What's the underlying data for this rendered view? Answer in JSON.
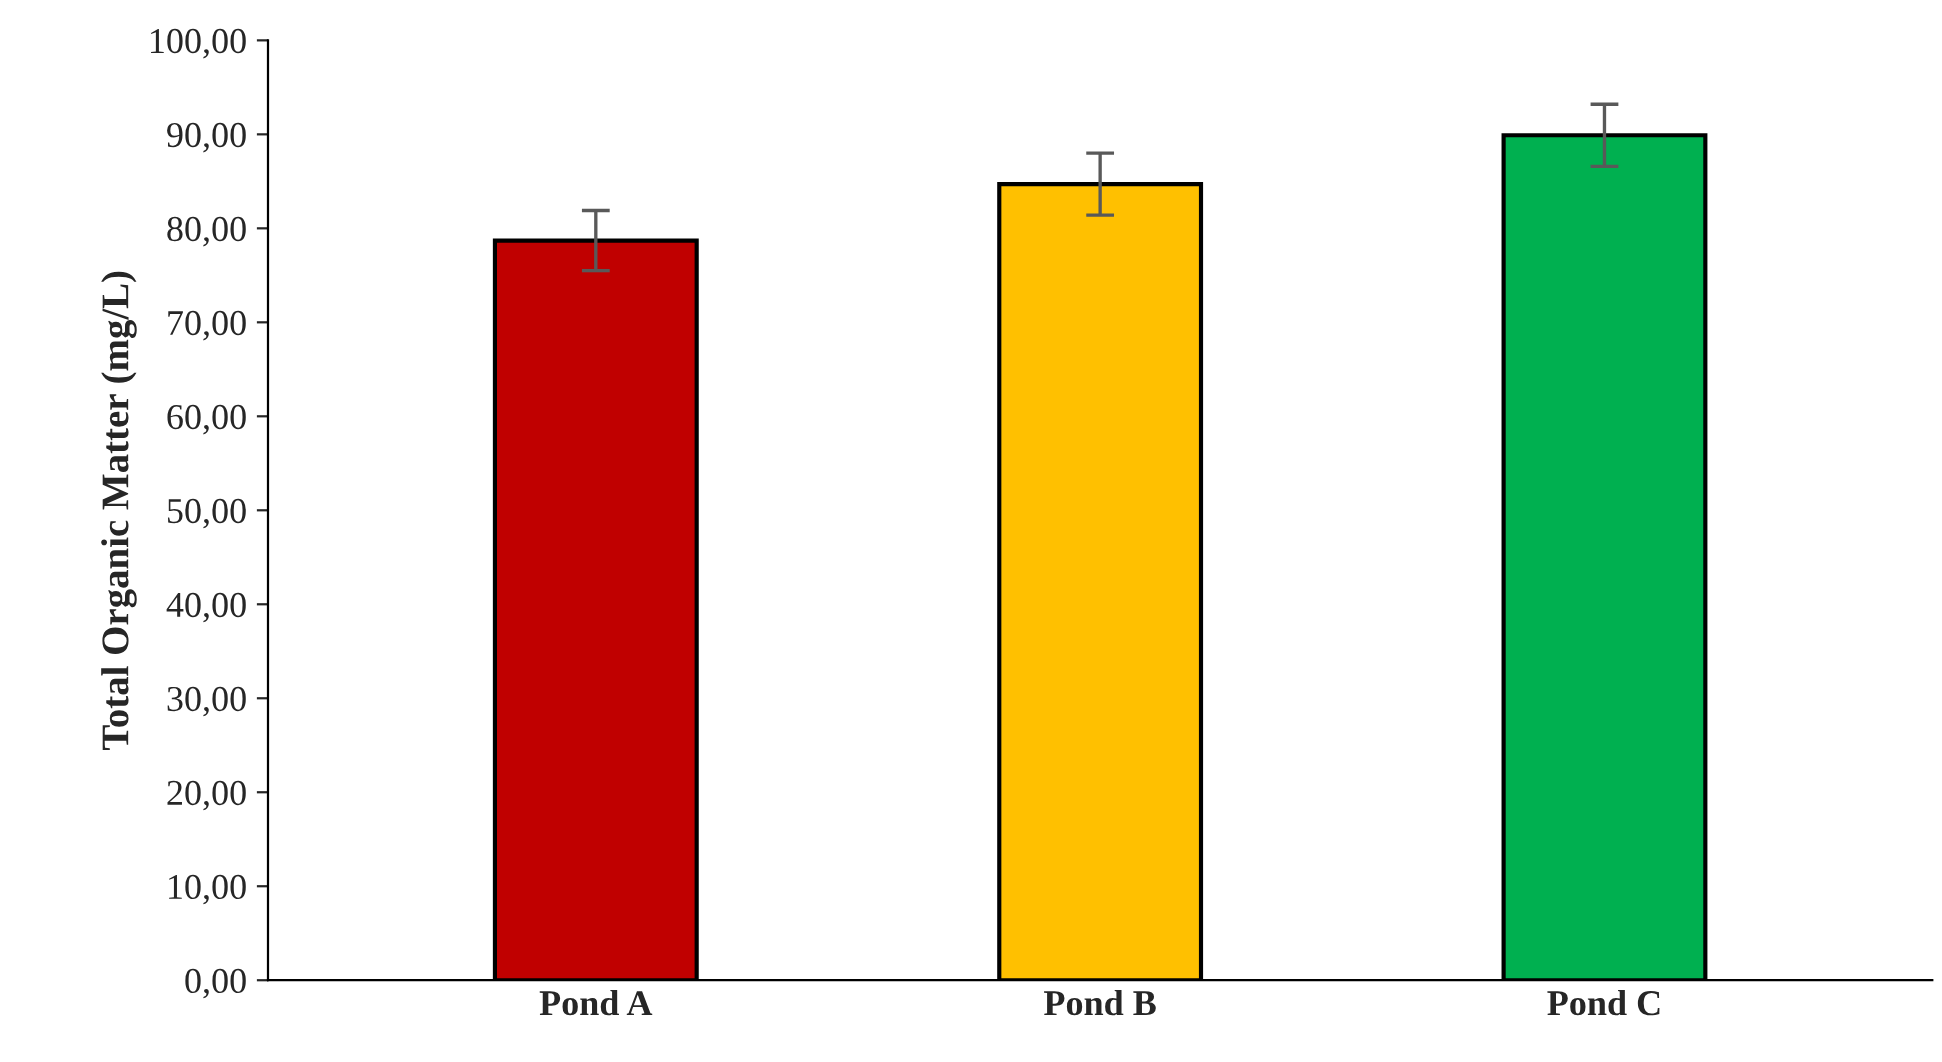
{
  "chart_data": {
    "type": "bar",
    "ylabel": "Total Organic Matter (mg/L)",
    "categories": [
      "Pond A",
      "Pond B",
      "Pond C"
    ],
    "values": [
      78.7,
      84.7,
      89.9
    ],
    "errors": [
      3.2,
      3.3,
      3.3
    ],
    "colors": [
      "#c00000",
      "#ffc000",
      "#00b050"
    ],
    "ylim": [
      0,
      100
    ],
    "yticks": [
      {
        "value": 0,
        "label": "0,00"
      },
      {
        "value": 10,
        "label": "10,00"
      },
      {
        "value": 20,
        "label": "20,00"
      },
      {
        "value": 30,
        "label": "30,00"
      },
      {
        "value": 40,
        "label": "40,00"
      },
      {
        "value": 50,
        "label": "50,00"
      },
      {
        "value": 60,
        "label": "60,00"
      },
      {
        "value": 70,
        "label": "70,00"
      },
      {
        "value": 80,
        "label": "80,00"
      },
      {
        "value": 90,
        "label": "90,00"
      },
      {
        "value": 100,
        "label": "100,00"
      }
    ],
    "grid": false
  }
}
